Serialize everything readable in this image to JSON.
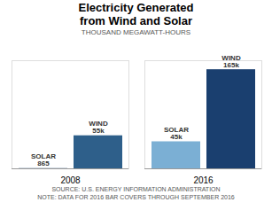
{
  "chart_data": {
    "type": "bar",
    "title": "Electricity Generated\nfrom Wind and Solar",
    "subtitle": "THOUSAND MEGAWATT-HOURS",
    "caption": "SOURCE: U.S. ENERGY INFORMATION ADMINISTRATION\nNOTE: DATA FOR 2016 BAR COVERS THROUGH SEPTEMBER 2016",
    "categories": [
      "2008",
      "2016"
    ],
    "series": [
      {
        "name": "SOLAR",
        "colors": [
          "#a8b8c8",
          "#7bafd4"
        ],
        "values": [
          865,
          45000
        ],
        "value_labels": [
          "865",
          "45k"
        ]
      },
      {
        "name": "WIND",
        "colors": [
          "#2e5f8a",
          "#1a3f6f"
        ],
        "values": [
          55000,
          165000
        ],
        "value_labels": [
          "55k",
          "165k"
        ]
      }
    ],
    "ylim": [
      0,
      180000
    ],
    "data_labels": true,
    "tick_labels": "x",
    "grid": false
  }
}
